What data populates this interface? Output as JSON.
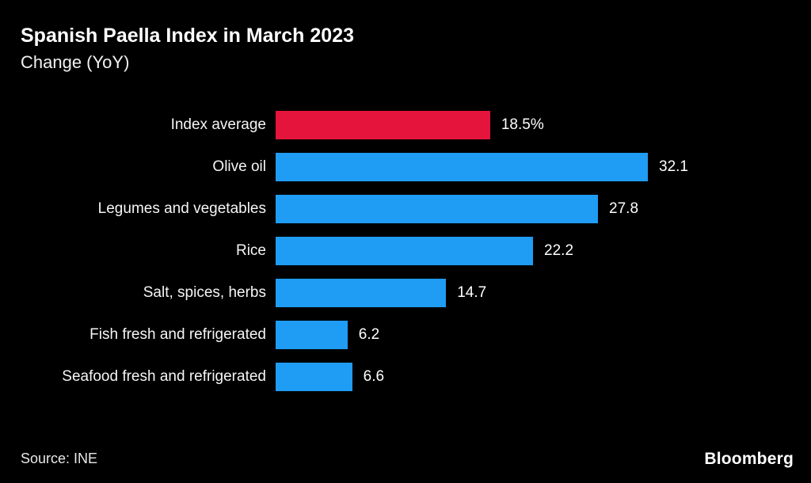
{
  "header": {
    "title": "Spanish Paella Index in March 2023",
    "subtitle": "Change (YoY)"
  },
  "chart_data": {
    "type": "bar",
    "orientation": "horizontal",
    "title": "Spanish Paella Index in March 2023",
    "subtitle": "Change (YoY)",
    "categories": [
      "Index average",
      "Olive oil",
      "Legumes and vegetables",
      "Rice",
      "Salt, spices, herbs",
      "Fish fresh and refrigerated",
      "Seafood fresh and refrigerated"
    ],
    "values": [
      18.5,
      32.1,
      27.8,
      22.2,
      14.7,
      6.2,
      6.6
    ],
    "value_labels": [
      "18.5%",
      "32.1",
      "27.8",
      "22.2",
      "14.7",
      "6.2",
      "6.6"
    ],
    "xlim": [
      0,
      32.1
    ],
    "grid": false,
    "legend": false,
    "highlight_index": 0,
    "colors": {
      "highlight": "#e4143c",
      "default": "#1f9cf4",
      "background": "#000000",
      "text": "#ffffff"
    }
  },
  "footer": {
    "source": "Source: INE",
    "brand": "Bloomberg"
  }
}
